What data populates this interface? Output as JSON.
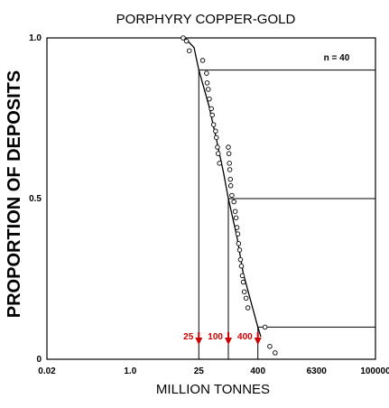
{
  "chart_data": {
    "type": "scatter",
    "title": "PORPHYRY COPPER-GOLD",
    "xlabel": "MILLION TONNES",
    "ylabel": "PROPORTION OF DEPOSITS",
    "x_scale": "log",
    "xlim": [
      0.02,
      100000
    ],
    "ylim": [
      0,
      1.0
    ],
    "x_tick_labels": [
      "0.02",
      "1.0",
      "25",
      "400",
      "6300",
      "100000"
    ],
    "x_tick_values": [
      0.02,
      1.0,
      25,
      400,
      6300,
      100000
    ],
    "y_tick_labels": [
      "0",
      "0.5",
      "1.0"
    ],
    "y_tick_values": [
      0,
      0.5,
      1.0
    ],
    "annotation": "n = 40",
    "points": [
      {
        "x": 12,
        "y": 1.0
      },
      {
        "x": 14,
        "y": 0.99
      },
      {
        "x": 16,
        "y": 0.96
      },
      {
        "x": 30,
        "y": 0.93
      },
      {
        "x": 36,
        "y": 0.89
      },
      {
        "x": 37,
        "y": 0.86
      },
      {
        "x": 39,
        "y": 0.84
      },
      {
        "x": 41,
        "y": 0.81
      },
      {
        "x": 45,
        "y": 0.78
      },
      {
        "x": 47,
        "y": 0.76
      },
      {
        "x": 50,
        "y": 0.73
      },
      {
        "x": 55,
        "y": 0.71
      },
      {
        "x": 57,
        "y": 0.69
      },
      {
        "x": 60,
        "y": 0.66
      },
      {
        "x": 62,
        "y": 0.64
      },
      {
        "x": 66,
        "y": 0.61
      },
      {
        "x": 100,
        "y": 0.66
      },
      {
        "x": 103,
        "y": 0.64
      },
      {
        "x": 105,
        "y": 0.61
      },
      {
        "x": 107,
        "y": 0.59
      },
      {
        "x": 110,
        "y": 0.56
      },
      {
        "x": 112,
        "y": 0.54
      },
      {
        "x": 118,
        "y": 0.51
      },
      {
        "x": 130,
        "y": 0.49
      },
      {
        "x": 138,
        "y": 0.46
      },
      {
        "x": 144,
        "y": 0.44
      },
      {
        "x": 150,
        "y": 0.41
      },
      {
        "x": 156,
        "y": 0.39
      },
      {
        "x": 162,
        "y": 0.36
      },
      {
        "x": 170,
        "y": 0.34
      },
      {
        "x": 177,
        "y": 0.31
      },
      {
        "x": 185,
        "y": 0.29
      },
      {
        "x": 193,
        "y": 0.26
      },
      {
        "x": 202,
        "y": 0.24
      },
      {
        "x": 212,
        "y": 0.21
      },
      {
        "x": 230,
        "y": 0.19
      },
      {
        "x": 250,
        "y": 0.16
      },
      {
        "x": 560,
        "y": 0.1
      },
      {
        "x": 700,
        "y": 0.04
      },
      {
        "x": 900,
        "y": 0.02
      }
    ],
    "fitted_curve": [
      {
        "x": 13,
        "y": 1.0
      },
      {
        "x": 20,
        "y": 0.97
      },
      {
        "x": 25,
        "y": 0.9
      },
      {
        "x": 40,
        "y": 0.79
      },
      {
        "x": 60,
        "y": 0.67
      },
      {
        "x": 80,
        "y": 0.58
      },
      {
        "x": 100,
        "y": 0.5
      },
      {
        "x": 150,
        "y": 0.38
      },
      {
        "x": 200,
        "y": 0.27
      },
      {
        "x": 300,
        "y": 0.17
      },
      {
        "x": 400,
        "y": 0.1
      },
      {
        "x": 460,
        "y": 0.07
      }
    ],
    "reference_levels": [
      {
        "y": 0.9,
        "x": 25,
        "label": "25"
      },
      {
        "y": 0.5,
        "x": 100,
        "label": "100"
      },
      {
        "y": 0.1,
        "x": 400,
        "label": "400"
      }
    ],
    "marker_color": "#cc0000",
    "grid": false,
    "legend": "none"
  }
}
